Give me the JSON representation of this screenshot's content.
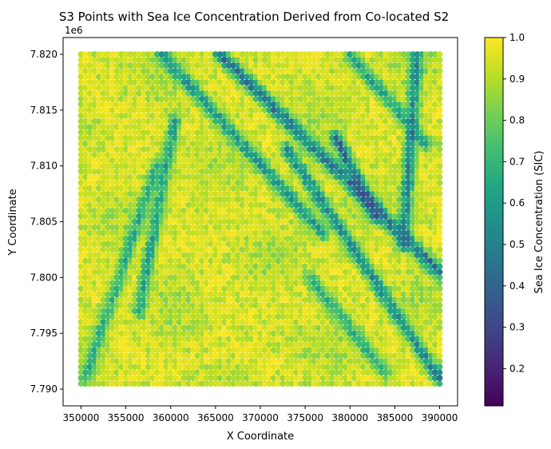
{
  "chart_data": {
    "type": "scatter",
    "title": "S3 Points with Sea Ice Concentration Derived from Co-located S2",
    "xlabel": "X Coordinate",
    "ylabel": "Y Coordinate",
    "y_offset_label": "1e6",
    "xlim": [
      348000,
      392000
    ],
    "ylim": [
      7788500,
      7821500
    ],
    "x_ticks": [
      350000,
      355000,
      360000,
      365000,
      370000,
      375000,
      380000,
      385000,
      390000
    ],
    "x_tick_labels": [
      "350000",
      "355000",
      "360000",
      "365000",
      "370000",
      "375000",
      "380000",
      "385000",
      "390000"
    ],
    "y_ticks": [
      7790000,
      7795000,
      7800000,
      7805000,
      7810000,
      7815000,
      7820000
    ],
    "y_tick_labels": [
      "7.790",
      "7.795",
      "7.800",
      "7.805",
      "7.810",
      "7.815",
      "7.820"
    ],
    "grid": false,
    "points": {
      "x_range": [
        350000,
        390000
      ],
      "y_range": [
        7790500,
        7820000
      ],
      "spacing": 500,
      "value_range": [
        0.11,
        1.0
      ],
      "description_of_field": "dense grid of points colored by SIC; mostly 0.85-1.0 with diagonal lead lines of 0.4-0.7"
    },
    "leads": [
      {
        "from": [
          365500,
          7820000
        ],
        "to": [
          390000,
          7800500
        ],
        "min_value": 0.35
      },
      {
        "from": [
          359000,
          7820000
        ],
        "to": [
          377000,
          7804000
        ],
        "min_value": 0.5
      },
      {
        "from": [
          373000,
          7811500
        ],
        "to": [
          390000,
          7791000
        ],
        "min_value": 0.45
      },
      {
        "from": [
          378500,
          7812500
        ],
        "to": [
          383000,
          7805500
        ],
        "min_value": 0.3
      },
      {
        "from": [
          360500,
          7814000
        ],
        "to": [
          356500,
          7797000
        ],
        "min_value": 0.55
      },
      {
        "from": [
          358500,
          7810000
        ],
        "to": [
          350500,
          7791000
        ],
        "min_value": 0.6
      },
      {
        "from": [
          387500,
          7820000
        ],
        "to": [
          386000,
          7803000
        ],
        "min_value": 0.4
      },
      {
        "from": [
          380000,
          7820000
        ],
        "to": [
          388500,
          7812000
        ],
        "min_value": 0.55
      },
      {
        "from": [
          375500,
          7800000
        ],
        "to": [
          384000,
          7791500
        ],
        "min_value": 0.6
      }
    ],
    "colorbar": {
      "label": "Sea Ice Concentration (SIC)",
      "range": [
        0.11,
        1.0
      ],
      "ticks": [
        0.2,
        0.3,
        0.4,
        0.5,
        0.6,
        0.7,
        0.8,
        0.9,
        1.0
      ],
      "tick_labels": [
        "0.2",
        "0.3",
        "0.4",
        "0.5",
        "0.6",
        "0.7",
        "0.8",
        "0.9",
        "1.0"
      ],
      "colormap": "viridis"
    }
  }
}
